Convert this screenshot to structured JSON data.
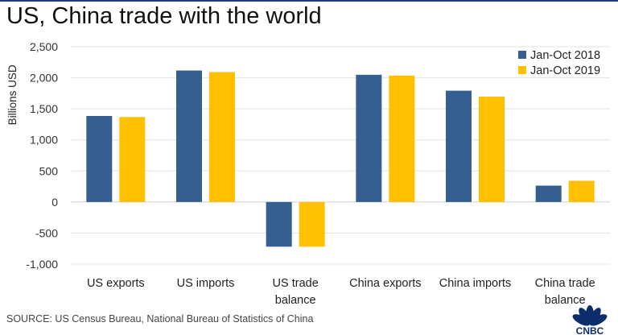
{
  "title": "US, China trade with the world",
  "source": "SOURCE: US Census Bureau, National Bureau of Statistics of China",
  "logo": {
    "text": "CNBC",
    "icon": "peacock-logo"
  },
  "chart_data": {
    "type": "bar",
    "title": "US, China trade with the world",
    "ylabel": "Billions USD",
    "ylim": [
      -1000,
      2500
    ],
    "yticks": [
      2500,
      2000,
      1500,
      1000,
      500,
      0,
      -500,
      -1000
    ],
    "ytick_labels": [
      "2,500",
      "2,000",
      "1,500",
      "1,000",
      "500",
      "0",
      "-500",
      "-1,000"
    ],
    "grid": true,
    "legend_position": "top-right",
    "categories": [
      [
        "US exports"
      ],
      [
        "US imports"
      ],
      [
        "US trade",
        "balance"
      ],
      [
        "China exports"
      ],
      [
        "China imports"
      ],
      [
        "China trade",
        "balance"
      ]
    ],
    "series": [
      {
        "name": "Jan-Oct 2018",
        "color": "#355e91",
        "values": [
          1385,
          2117,
          -719,
          2048,
          1792,
          264
        ]
      },
      {
        "name": "Jan-Oct 2019",
        "color": "#ffc000",
        "values": [
          1368,
          2091,
          -719,
          2035,
          1697,
          342
        ]
      }
    ]
  }
}
